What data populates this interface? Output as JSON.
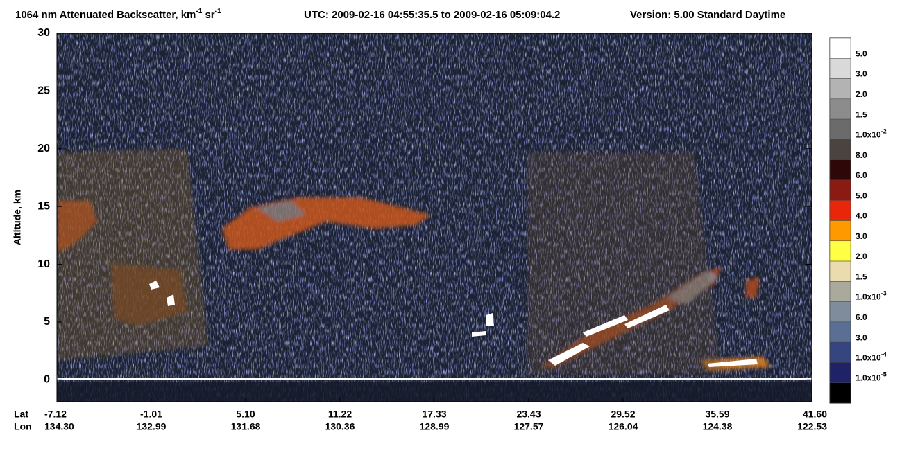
{
  "chart_data": {
    "type": "lidar-curtain",
    "title": {
      "text": "1064 nm Attenuated Backscatter, km",
      "sup1": "-1",
      "unit2": " sr",
      "sup2": "-1"
    },
    "utc": "UTC:  2009-02-16 04:55:35.5  to  2009-02-16 05:09:04.2",
    "version": "Version: 5.00  Standard  Daytime",
    "ylabel": "Altitude, km",
    "ylim": [
      -1.9,
      30
    ],
    "yticks": [
      0,
      5,
      10,
      15,
      20,
      25,
      30
    ],
    "x_rows": [
      "Lat",
      "Lon"
    ],
    "lat": [
      "-7.12",
      "-1.01",
      "5.10",
      "11.22",
      "17.33",
      "23.43",
      "29.52",
      "35.59",
      "41.60"
    ],
    "lon": [
      "134.30",
      "132.99",
      "131.68",
      "130.36",
      "128.99",
      "127.57",
      "126.04",
      "124.38",
      "122.53"
    ],
    "colorbar": {
      "colors": [
        "#ffffff",
        "#d9d9d9",
        "#b3b3b3",
        "#8c8c8c",
        "#6b6b6b",
        "#4a4340",
        "#2e0808",
        "#8a1a12",
        "#e8260a",
        "#ff9900",
        "#ffff44",
        "#ebdcb0",
        "#a9a99c",
        "#7e8c9b",
        "#5a6f93",
        "#34457f",
        "#1f2266",
        "#000000"
      ],
      "labels": [
        "5.0",
        "3.0",
        "2.0",
        "1.5",
        {
          "text": "1.0x10",
          "sup": "-2"
        },
        "8.0",
        "6.0",
        "5.0",
        "4.0",
        "3.0",
        "2.0",
        "1.5",
        {
          "text": "1.0x10",
          "sup": "-3"
        },
        "6.0",
        "3.0",
        {
          "text": "1.0x10",
          "sup": "-4"
        },
        {
          "text": "1.0x10",
          "sup": "-5"
        }
      ]
    }
  }
}
